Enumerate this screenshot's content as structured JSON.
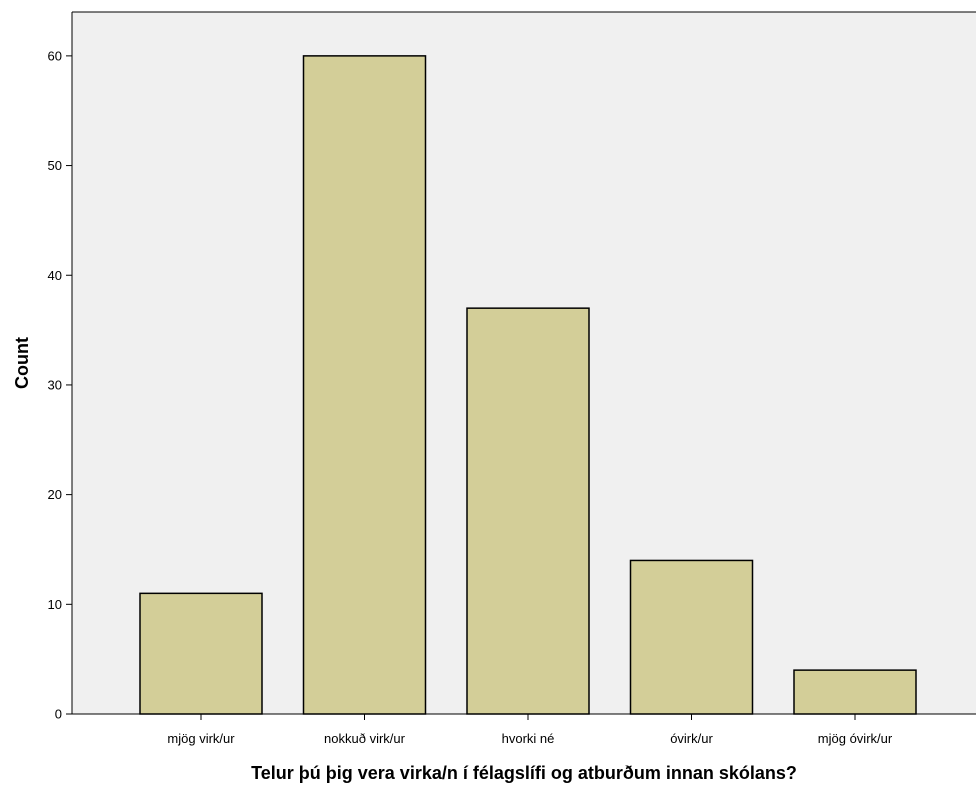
{
  "chart_data": {
    "type": "bar",
    "categories": [
      "mjög virk/ur",
      "nokkuð virk/ur",
      "hvorki né",
      "óvirk/ur",
      "mjög óvirk/ur"
    ],
    "values": [
      11,
      60,
      37,
      14,
      4
    ],
    "xlabel": "Telur þú þig vera virka/n í félagslífi og atburðum innan skólans?",
    "ylabel": "Count",
    "ylim": [
      0,
      64
    ],
    "yticks": [
      0,
      10,
      20,
      30,
      40,
      50,
      60
    ],
    "grid": false,
    "colors": {
      "bar_fill": "#d3ce98",
      "bar_stroke": "#000000",
      "plot_background": "#f0f0f0",
      "page_background": "#ffffff"
    }
  }
}
